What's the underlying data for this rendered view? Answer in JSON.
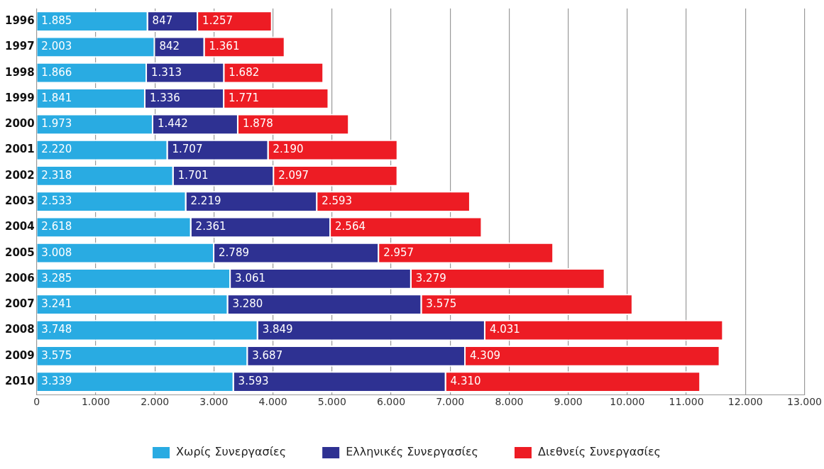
{
  "chart_data": {
    "type": "bar",
    "orientation": "horizontal",
    "stacked": true,
    "categories": [
      "1996",
      "1997",
      "1998",
      "1999",
      "2000",
      "2001",
      "2002",
      "2003",
      "2004",
      "2005",
      "2006",
      "2007",
      "2008",
      "2009",
      "2010"
    ],
    "series": [
      {
        "name": "Χωρίς Συνεργασίες",
        "color": "#29abe2",
        "values": [
          1885,
          2003,
          1866,
          1841,
          1973,
          2220,
          2318,
          2533,
          2618,
          3008,
          3285,
          3241,
          3748,
          3575,
          3339
        ],
        "value_labels": [
          "1.885",
          "2.003",
          "1.866",
          "1.841",
          "1.973",
          "2.220",
          "2.318",
          "2.533",
          "2.618",
          "3.008",
          "3.285",
          "3.241",
          "3.748",
          "3.575",
          "3.339"
        ]
      },
      {
        "name": "Ελληνικές Συνεργασίες",
        "color": "#2e3192",
        "values": [
          847,
          842,
          1313,
          1336,
          1442,
          1707,
          1701,
          2219,
          2361,
          2789,
          3061,
          3280,
          3849,
          3687,
          3593
        ],
        "value_labels": [
          "847",
          "842",
          "1.313",
          "1.336",
          "1.442",
          "1.707",
          "1.701",
          "2.219",
          "2.361",
          "2.789",
          "3.061",
          "3.280",
          "3.849",
          "3.687",
          "3.593"
        ]
      },
      {
        "name": "Διεθνείς Συνεργασίες",
        "color": "#ed1c24",
        "values": [
          1257,
          1361,
          1682,
          1771,
          1878,
          2190,
          2097,
          2593,
          2564,
          2957,
          3279,
          3575,
          4031,
          4309,
          4310
        ],
        "value_labels": [
          "1.257",
          "1.361",
          "1.682",
          "1.771",
          "1.878",
          "2.190",
          "2.097",
          "2.593",
          "2.564",
          "2.957",
          "3.279",
          "3.575",
          "4.031",
          "4.309",
          "4.310"
        ]
      }
    ],
    "xlim": [
      0,
      13000
    ],
    "xticks": [
      0,
      {
        "value": 1000,
        "label": "1.000"
      },
      {
        "value": 2000,
        "label": "2.000"
      },
      {
        "value": 3000,
        "label": "3.000"
      },
      {
        "value": 4000,
        "label": "4.000"
      },
      {
        "value": 5000,
        "label": "5.000"
      },
      {
        "value": 6000,
        "label": "6.000"
      },
      {
        "value": 7000,
        "label": "7.000"
      },
      {
        "value": 8000,
        "label": "8.000"
      },
      {
        "value": 9000,
        "label": "9.000"
      },
      {
        "value": 10000,
        "label": "10.000"
      },
      {
        "value": 11000,
        "label": "11.000"
      },
      {
        "value": 12000,
        "label": "12.000"
      },
      {
        "value": 13000,
        "label": "13.000"
      }
    ],
    "grid": "x",
    "legend": "bottom"
  }
}
